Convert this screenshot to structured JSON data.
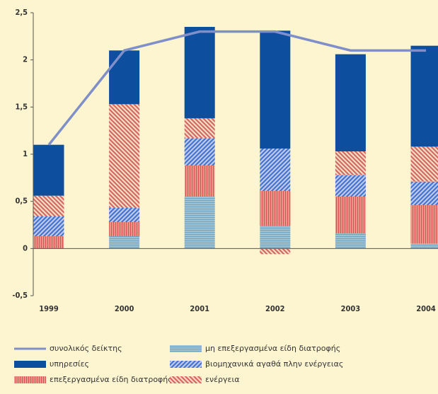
{
  "chart_data": {
    "type": "bar",
    "categories": [
      "1999",
      "2000",
      "2001",
      "2002",
      "2003",
      "2004"
    ],
    "ylim": [
      -0.5,
      2.5
    ],
    "yticks": [
      {
        "value": 2.5,
        "label": "2,5"
      },
      2,
      {
        "value": 1.5,
        "label": "1,5"
      },
      1,
      {
        "value": 0.5,
        "label": "0,5"
      },
      0,
      {
        "value": -0.5,
        "label": "-0,5"
      }
    ],
    "series": [
      {
        "name": "μη επεξεργασμένα είδη διατροφής",
        "color": "#6fa3c0",
        "pattern": "horizontal",
        "values": [
          0,
          0.13,
          0.55,
          0.24,
          0.16,
          0.05
        ]
      },
      {
        "name": "επεξεργασμένα είδη διατροφής",
        "color": "#d9534f",
        "pattern": "vertical",
        "values": [
          0.13,
          0.15,
          0.33,
          0.37,
          0.39,
          0.41
        ]
      },
      {
        "name": "βιομηχανικά αγαθά πλην ενέργειας",
        "color": "#3f6fd0",
        "pattern": "diagonal",
        "values": [
          0.21,
          0.15,
          0.29,
          0.45,
          0.23,
          0.25
        ]
      },
      {
        "name": "ενέργεια",
        "color": "#d9605a",
        "pattern": "diagonal-reverse",
        "values": [
          0.22,
          1.1,
          0.21,
          -0.06,
          0.25,
          0.37
        ]
      },
      {
        "name": "υπηρεσίες",
        "color": "#0d4f9e",
        "pattern": "solid",
        "values": [
          0.54,
          0.57,
          0.97,
          1.25,
          1.03,
          1.07
        ]
      }
    ],
    "line": {
      "name": "συνολικός δείκτης",
      "color": "#7f8fc8",
      "values": [
        1.1,
        2.1,
        2.3,
        2.3,
        2.1,
        2.1
      ]
    }
  }
}
